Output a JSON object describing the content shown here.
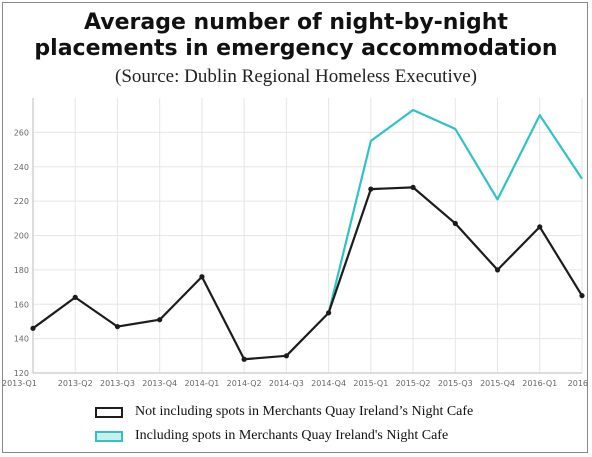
{
  "chart_data": {
    "type": "line",
    "title_line1": "Average number of night-by-night",
    "title_line2": "placements in emergency accommodation",
    "subtitle": "(Source: Dublin Regional Homeless Executive)",
    "categories": [
      "2013-Q1",
      "2013-Q2",
      "2013-Q3",
      "2013-Q4",
      "2014-Q1",
      "2014-Q2",
      "2014-Q3",
      "2014-Q4",
      "2015-Q1",
      "2015-Q2",
      "2015-Q3",
      "2015-Q4",
      "2016-Q1",
      "2016"
    ],
    "ylim": [
      120,
      280
    ],
    "yticks": [
      120,
      140,
      160,
      180,
      200,
      220,
      240,
      260
    ],
    "grid": true,
    "series": [
      {
        "name": "Not including spots in Merchants Quay Ireland’s Night Cafe",
        "color": "#1c1c1c",
        "markers": true,
        "values": [
          146,
          164,
          147,
          151,
          176,
          128,
          130,
          155,
          227,
          228,
          207,
          180,
          205,
          165
        ]
      },
      {
        "name": "Including spots in Merchants Quay Ireland's Night Cafe",
        "color": "#2ec4c4",
        "markers": false,
        "values": [
          null,
          null,
          null,
          null,
          null,
          null,
          null,
          155,
          255,
          273,
          262,
          221,
          270,
          233
        ]
      }
    ],
    "legend_position": "bottom"
  }
}
